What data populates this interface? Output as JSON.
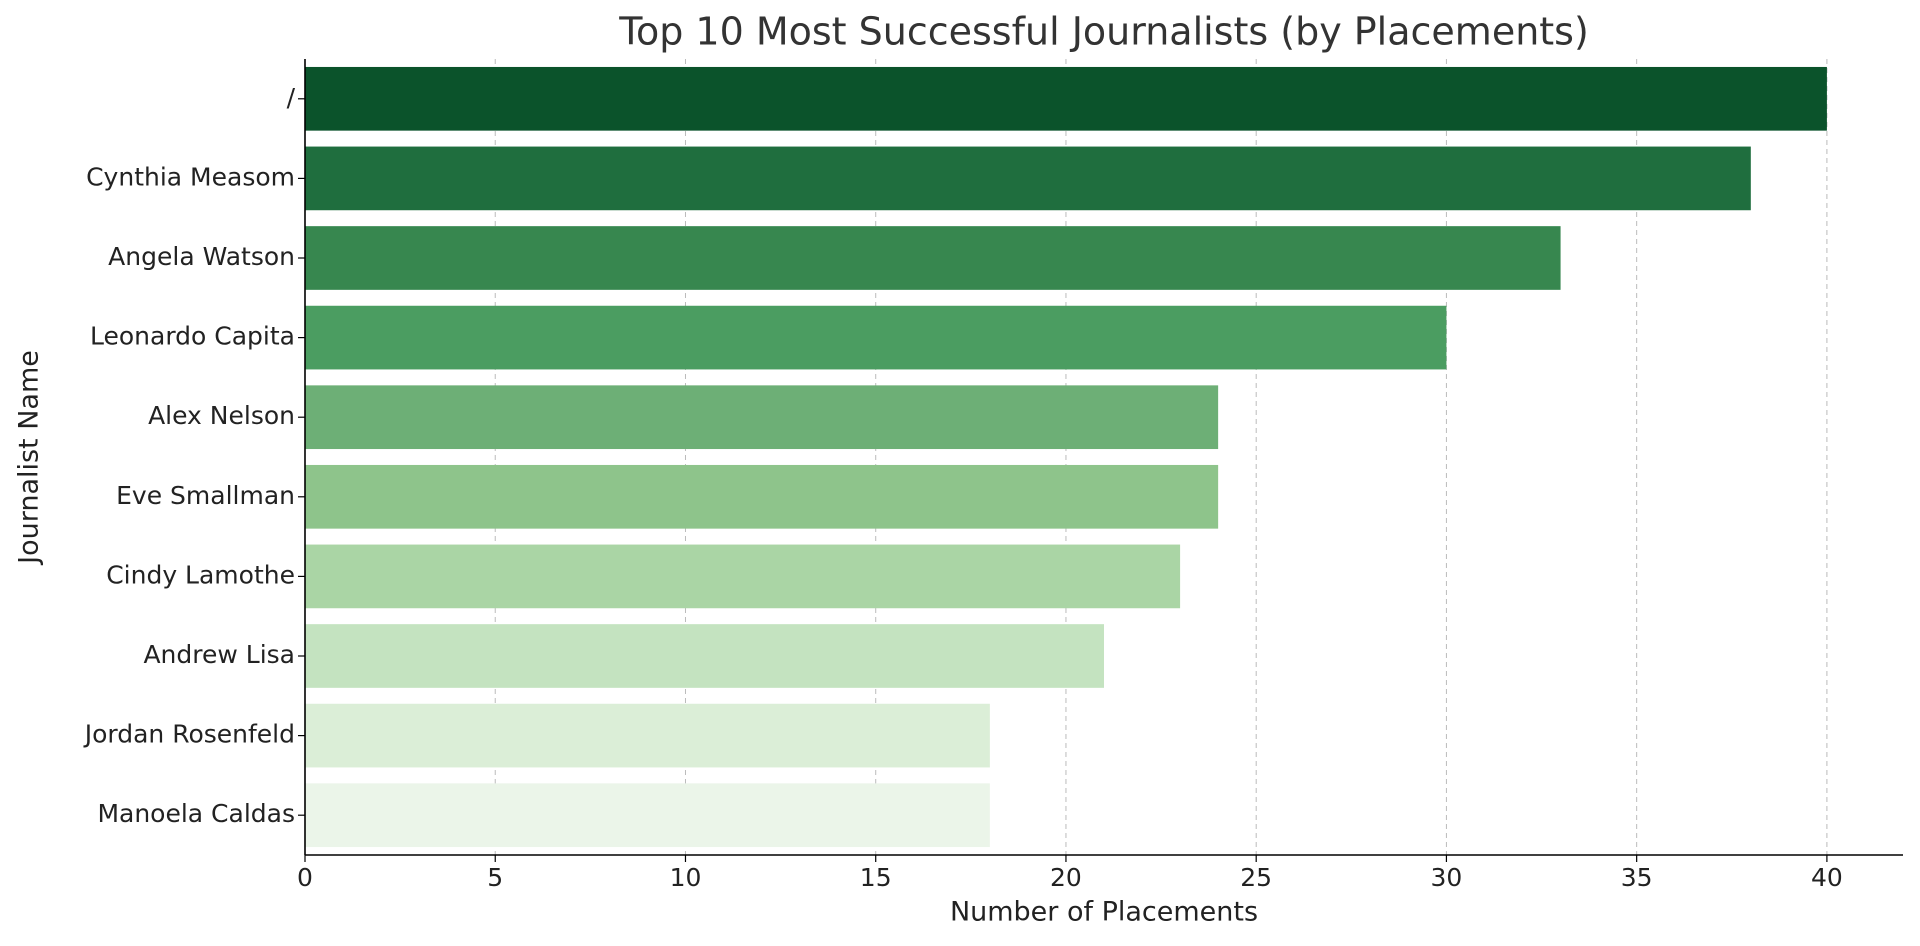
{
  "chart_data": {
    "type": "barh",
    "title": "Top 10 Most Successful Journalists (by Placements)",
    "x_label": "Number of Placements",
    "y_label": "Journalist Name",
    "categories": [
      "/",
      "Cynthia Measom",
      "Angela Watson",
      "Leonardo Capita",
      "Alex Nelson",
      "Eve Smallman",
      "Cindy Lamothe",
      "Andrew Lisa",
      "Jordan Rosenfeld",
      "Manoela Caldas"
    ],
    "values": [
      40,
      38,
      33,
      30,
      24,
      24,
      23,
      21,
      18,
      18
    ],
    "colors": [
      "#0b532b",
      "#1f6e3e",
      "#37874f",
      "#4b9d61",
      "#6daf76",
      "#8ec48b",
      "#aad5a5",
      "#c4e3c0",
      "#dbeed7",
      "#ebf5e9"
    ],
    "xlim": [
      0,
      42
    ],
    "xticks": [
      0,
      5,
      10,
      15,
      20,
      25,
      30,
      35,
      40
    ],
    "grid": true
  }
}
